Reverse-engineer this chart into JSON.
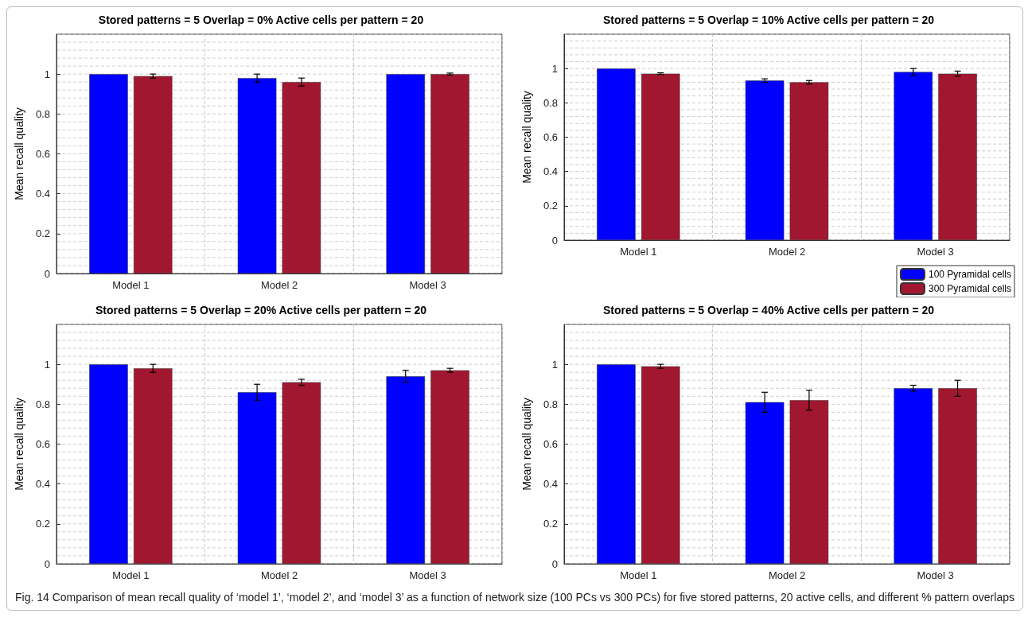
{
  "chart_data": [
    {
      "type": "bar",
      "title": "Stored patterns = 5 Overlap = 0% Active cells per pattern = 20",
      "ylabel": "Mean recall quality",
      "categories": [
        "Model 1",
        "Model 2",
        "Model 3"
      ],
      "ylim": [
        0,
        1.2
      ],
      "yticks": [
        0,
        0.2,
        0.4,
        0.6,
        0.8,
        1
      ],
      "grid": true,
      "legend": false,
      "series": [
        {
          "color": "#0000ff",
          "values": [
            1,
            0.98,
            1
          ],
          "errors": [
            null,
            0.02,
            null
          ]
        },
        {
          "color": "#a11730",
          "values": [
            0.99,
            0.96,
            1
          ],
          "errors": [
            0.01,
            0.02,
            0.005
          ]
        }
      ]
    },
    {
      "type": "bar",
      "title": "Stored patterns = 5 Overlap = 10% Active cells per pattern = 20",
      "ylabel": "Mean recall quality",
      "categories": [
        "Model 1",
        "Model 2",
        "Model 3"
      ],
      "ylim": [
        0,
        1.2
      ],
      "yticks": [
        0,
        0.2,
        0.4,
        0.6,
        0.8,
        1
      ],
      "grid": true,
      "legend": "bottom right",
      "series": [
        {
          "name": "100 Pyramidal cells",
          "color": "#0000ff",
          "values": [
            1,
            0.93,
            0.98
          ],
          "errors": [
            null,
            0.01,
            0.02
          ]
        },
        {
          "name": "300 Pyramidal cells",
          "color": "#a11730",
          "values": [
            0.97,
            0.92,
            0.97
          ],
          "errors": [
            0.005,
            0.01,
            0.015
          ]
        }
      ]
    },
    {
      "type": "bar",
      "title": "Stored patterns = 5 Overlap = 20% Active cells per pattern = 20",
      "ylabel": "Mean recall quality",
      "categories": [
        "Model 1",
        "Model 2",
        "Model 3"
      ],
      "ylim": [
        0,
        1.2
      ],
      "yticks": [
        0,
        0.2,
        0.4,
        0.6,
        0.8,
        1
      ],
      "grid": true,
      "legend": false,
      "series": [
        {
          "color": "#0000ff",
          "values": [
            1,
            0.86,
            0.94
          ],
          "errors": [
            null,
            0.04,
            0.03
          ]
        },
        {
          "color": "#a11730",
          "values": [
            0.98,
            0.91,
            0.97
          ],
          "errors": [
            0.02,
            0.015,
            0.01
          ]
        }
      ]
    },
    {
      "type": "bar",
      "title": "Stored patterns = 5 Overlap = 40% Active cells per pattern = 20",
      "ylabel": "Mean recall quality",
      "categories": [
        "Model 1",
        "Model 2",
        "Model 3"
      ],
      "ylim": [
        0,
        1.2
      ],
      "yticks": [
        0,
        0.2,
        0.4,
        0.6,
        0.8,
        1
      ],
      "grid": true,
      "legend": false,
      "annotations": [
        "Fig. 14  Comparison of mean recall quality of ‘model 1’, ‘model 2’, and ‘model 3’ as a function of network size (100 PCs vs 300 PCs) for five stored patterns, 20 active cells, and different % pattern overlaps"
      ],
      "series": [
        {
          "color": "#0000ff",
          "values": [
            1,
            0.81,
            0.88
          ],
          "errors": [
            null,
            0.05,
            0.015
          ]
        },
        {
          "color": "#a11730",
          "values": [
            0.99,
            0.82,
            0.88
          ],
          "errors": [
            0.01,
            0.05,
            0.04
          ]
        }
      ]
    }
  ]
}
